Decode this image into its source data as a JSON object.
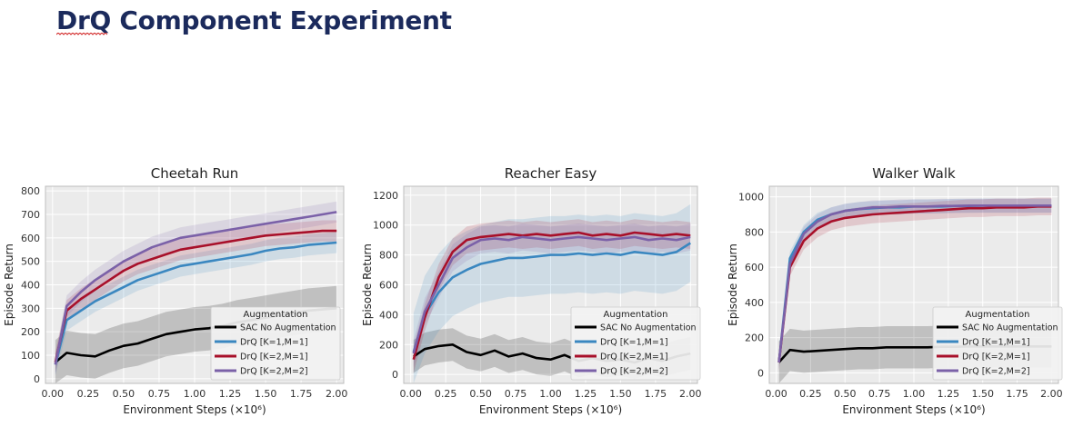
{
  "page": {
    "title": "DrQ Component Experiment"
  },
  "chart_data": [
    {
      "type": "line",
      "title": "Cheetah Run",
      "xlabel": "Environment Steps (×10⁶)",
      "ylabel": "Episode Return",
      "xlim": [
        -0.05,
        2.05
      ],
      "ylim": [
        -20,
        820
      ],
      "xticks": [
        0.0,
        0.25,
        0.5,
        0.75,
        1.0,
        1.25,
        1.5,
        1.75,
        2.0
      ],
      "xtick_labels": [
        "0.00",
        "0.25",
        "0.50",
        "0.75",
        "1.00",
        "1.25",
        "1.50",
        "1.75",
        "2.00"
      ],
      "yticks": [
        0,
        100,
        200,
        300,
        400,
        500,
        600,
        700,
        800
      ],
      "legend_title": "Augmentation",
      "legend_position": "bottom-right",
      "x": [
        0.02,
        0.1,
        0.2,
        0.3,
        0.4,
        0.5,
        0.6,
        0.7,
        0.8,
        0.9,
        1.0,
        1.1,
        1.2,
        1.3,
        1.4,
        1.5,
        1.6,
        1.7,
        1.8,
        1.9,
        2.0
      ],
      "series": [
        {
          "name": "SAC No Augmentation",
          "color": "#000000",
          "band": 95,
          "values": [
            70,
            110,
            100,
            95,
            120,
            140,
            150,
            170,
            190,
            200,
            210,
            215,
            225,
            240,
            250,
            260,
            270,
            280,
            290,
            295,
            300
          ]
        },
        {
          "name": "DrQ [K=1,M=1]",
          "color": "#3a87c0",
          "band": 45,
          "values": [
            60,
            250,
            290,
            330,
            360,
            390,
            420,
            440,
            460,
            480,
            490,
            500,
            510,
            520,
            530,
            545,
            555,
            560,
            570,
            575,
            580
          ]
        },
        {
          "name": "DrQ [K=2,M=1]",
          "color": "#a8102a",
          "band": 45,
          "values": [
            70,
            290,
            340,
            380,
            420,
            460,
            490,
            510,
            530,
            550,
            560,
            570,
            580,
            590,
            600,
            610,
            615,
            620,
            625,
            630,
            630
          ]
        },
        {
          "name": "DrQ [K=2,M=2]",
          "color": "#7b61a8",
          "band": 45,
          "values": [
            60,
            310,
            370,
            420,
            460,
            500,
            530,
            560,
            580,
            600,
            610,
            620,
            630,
            640,
            650,
            660,
            670,
            680,
            690,
            700,
            710
          ]
        }
      ]
    },
    {
      "type": "line",
      "title": "Reacher Easy",
      "xlabel": "Environment Steps (×10⁶)",
      "ylabel": "Episode Return",
      "xlim": [
        -0.05,
        2.05
      ],
      "ylim": [
        -60,
        1260
      ],
      "xticks": [
        0.0,
        0.25,
        0.5,
        0.75,
        1.0,
        1.25,
        1.5,
        1.75,
        2.0
      ],
      "xtick_labels": [
        "0.00",
        "0.25",
        "0.50",
        "0.75",
        "1.00",
        "1.25",
        "1.50",
        "1.75",
        "2.00"
      ],
      "yticks": [
        0,
        200,
        400,
        600,
        800,
        1000,
        1200
      ],
      "legend_title": "Augmentation",
      "legend_position": "bottom-right",
      "x": [
        0.02,
        0.1,
        0.2,
        0.3,
        0.4,
        0.5,
        0.6,
        0.7,
        0.8,
        0.9,
        1.0,
        1.1,
        1.2,
        1.3,
        1.4,
        1.5,
        1.6,
        1.7,
        1.8,
        1.9,
        2.0
      ],
      "series": [
        {
          "name": "SAC No Augmentation",
          "color": "#000000",
          "band": 110,
          "values": [
            120,
            170,
            190,
            200,
            150,
            130,
            160,
            120,
            140,
            110,
            100,
            130,
            90,
            110,
            90,
            100,
            80,
            110,
            90,
            120,
            140
          ]
        },
        {
          "name": "DrQ [K=1,M=1]",
          "color": "#3a87c0",
          "band": 260,
          "values": [
            150,
            400,
            550,
            650,
            700,
            740,
            760,
            780,
            780,
            790,
            800,
            800,
            810,
            800,
            810,
            800,
            820,
            810,
            800,
            820,
            880
          ]
        },
        {
          "name": "DrQ [K=2,M=1]",
          "color": "#a8102a",
          "band": 90,
          "values": [
            100,
            380,
            650,
            820,
            900,
            920,
            930,
            940,
            930,
            940,
            930,
            940,
            950,
            930,
            940,
            930,
            950,
            940,
            930,
            940,
            930
          ]
        },
        {
          "name": "DrQ [K=2,M=2]",
          "color": "#7b61a8",
          "band": 90,
          "values": [
            140,
            420,
            600,
            780,
            850,
            900,
            910,
            900,
            920,
            910,
            900,
            910,
            920,
            910,
            900,
            910,
            920,
            900,
            910,
            900,
            920
          ]
        }
      ]
    },
    {
      "type": "line",
      "title": "Walker Walk",
      "xlabel": "Environment Steps (×10⁶)",
      "ylabel": "Episode Return",
      "xlim": [
        -0.05,
        2.05
      ],
      "ylim": [
        -60,
        1060
      ],
      "xticks": [
        0.0,
        0.25,
        0.5,
        0.75,
        1.0,
        1.25,
        1.5,
        1.75,
        2.0
      ],
      "xtick_labels": [
        "0.00",
        "0.25",
        "0.50",
        "0.75",
        "1.00",
        "1.25",
        "1.50",
        "1.75",
        "2.00"
      ],
      "yticks": [
        0,
        200,
        400,
        600,
        800,
        1000
      ],
      "legend_title": "Augmentation",
      "legend_position": "bottom-right",
      "x": [
        0.02,
        0.1,
        0.2,
        0.3,
        0.4,
        0.5,
        0.6,
        0.7,
        0.8,
        0.9,
        1.0,
        1.1,
        1.2,
        1.3,
        1.4,
        1.5,
        1.6,
        1.7,
        1.8,
        1.9,
        2.0
      ],
      "series": [
        {
          "name": "SAC No Augmentation",
          "color": "#000000",
          "band": 120,
          "values": [
            60,
            130,
            120,
            125,
            130,
            135,
            140,
            140,
            145,
            145,
            145,
            145,
            148,
            148,
            150,
            150,
            150,
            150,
            150,
            150,
            150
          ]
        },
        {
          "name": "DrQ [K=1,M=1]",
          "color": "#3a87c0",
          "band": 40,
          "values": [
            60,
            650,
            800,
            870,
            900,
            920,
            930,
            935,
            940,
            940,
            945,
            945,
            945,
            948,
            948,
            950,
            950,
            950,
            950,
            950,
            950
          ]
        },
        {
          "name": "DrQ [K=2,M=1]",
          "color": "#a8102a",
          "band": 50,
          "values": [
            60,
            600,
            750,
            820,
            860,
            880,
            890,
            900,
            905,
            910,
            915,
            920,
            925,
            930,
            935,
            935,
            940,
            940,
            940,
            945,
            945
          ]
        },
        {
          "name": "DrQ [K=2,M=2]",
          "color": "#7b61a8",
          "band": 40,
          "values": [
            60,
            620,
            790,
            860,
            900,
            920,
            930,
            940,
            940,
            945,
            945,
            945,
            948,
            948,
            950,
            950,
            950,
            950,
            950,
            950,
            950
          ]
        }
      ]
    }
  ]
}
